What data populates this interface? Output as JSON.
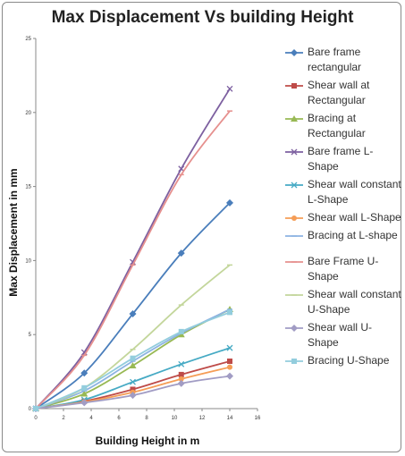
{
  "chart_data": {
    "type": "line",
    "title": "Max Displacement Vs building Height",
    "xlabel": "Building Height in m",
    "ylabel": "Max Displacement in mm",
    "xlim": [
      0,
      16
    ],
    "ylim": [
      0,
      25
    ],
    "xticks": [
      "0",
      "2",
      "4",
      "6",
      "8",
      "10",
      "12",
      "14",
      "16"
    ],
    "yticks": [
      "0",
      "5",
      "10",
      "15",
      "20",
      "25"
    ],
    "grid": false,
    "legend_position": "right",
    "series": [
      {
        "name": "Bare frame rectangular",
        "color": "#4a7ebb",
        "marker": "diamond",
        "x": [
          0,
          3.5,
          7,
          10.5,
          14
        ],
        "y": [
          0,
          2.4,
          6.4,
          10.5,
          13.9
        ]
      },
      {
        "name": "Shear wall at Rectangular",
        "color": "#be4b48",
        "marker": "square",
        "x": [
          0,
          3.5,
          7,
          10.5,
          14
        ],
        "y": [
          0,
          0.5,
          1.3,
          2.3,
          3.2
        ]
      },
      {
        "name": "Bracing at Rectangular",
        "color": "#98b954",
        "marker": "triangle",
        "x": [
          0,
          3.5,
          7,
          10.5,
          14
        ],
        "y": [
          0,
          1.0,
          2.9,
          5.0,
          6.7
        ]
      },
      {
        "name": "Bare frame L-Shape",
        "color": "#7d60a0",
        "marker": "x",
        "x": [
          0,
          3.5,
          7,
          10.5,
          14
        ],
        "y": [
          0,
          3.8,
          9.9,
          16.2,
          21.6
        ]
      },
      {
        "name": "Shear wall constant L-Shape",
        "color": "#46aac4",
        "marker": "x",
        "x": [
          0,
          3.5,
          7,
          10.5,
          14
        ],
        "y": [
          0,
          0.6,
          1.8,
          3.0,
          4.1
        ]
      },
      {
        "name": "Shear wall L-Shape",
        "color": "#f59d56",
        "marker": "circle",
        "x": [
          0,
          3.5,
          7,
          10.5,
          14
        ],
        "y": [
          0,
          0.45,
          1.1,
          2.0,
          2.8
        ]
      },
      {
        "name": "Bracing at L-shape",
        "color": "#8db3e2",
        "marker": "dash",
        "x": [
          0,
          3.5,
          7,
          10.5,
          14
        ],
        "y": [
          0,
          1.2,
          3.2,
          5.1,
          6.7
        ]
      },
      {
        "name": "Bare Frame U-Shape",
        "color": "#e6908e",
        "marker": "dash",
        "x": [
          0,
          3.5,
          7,
          10.5,
          14
        ],
        "y": [
          0,
          3.6,
          9.7,
          15.8,
          20.1
        ]
      },
      {
        "name": "Shear wall constant U-Shape",
        "color": "#c3d69b",
        "marker": "dash",
        "x": [
          0,
          3.5,
          7,
          10.5,
          14
        ],
        "y": [
          0,
          1.4,
          4.0,
          7.0,
          9.7
        ]
      },
      {
        "name": "Shear wall U-Shape",
        "color": "#a19cc4",
        "marker": "diamond",
        "x": [
          0,
          3.5,
          7,
          10.5,
          14
        ],
        "y": [
          0,
          0.4,
          0.9,
          1.7,
          2.2
        ]
      },
      {
        "name": "Bracing U-Shape",
        "color": "#93cddd",
        "marker": "square",
        "x": [
          0,
          3.5,
          7,
          10.5,
          14
        ],
        "y": [
          0,
          1.4,
          3.4,
          5.2,
          6.5
        ]
      }
    ]
  }
}
